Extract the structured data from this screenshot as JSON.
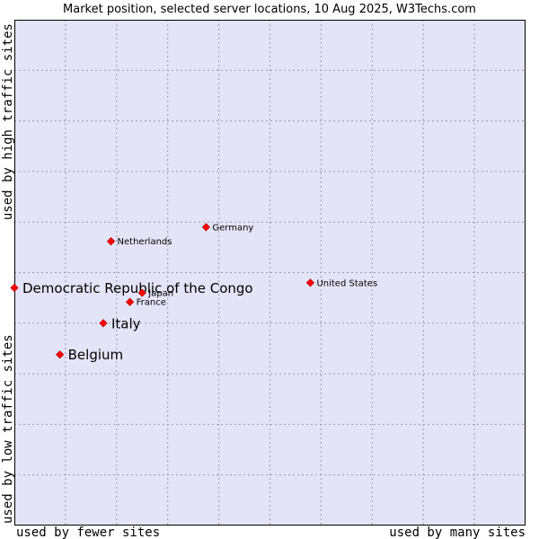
{
  "chart_data": {
    "type": "scatter",
    "title": "Market position, selected server locations, 10 Aug 2025, W3Techs.com",
    "xlabel_left": "used by fewer sites",
    "xlabel_right": "used by many sites",
    "ylabel_bottom": "used by low traffic sites",
    "ylabel_top": "used by high traffic sites",
    "xlim": [
      0,
      1
    ],
    "ylim": [
      0,
      1
    ],
    "grid": true,
    "colors": {
      "plot_bg": "#e4e4f8",
      "grid": "#9a9aaa",
      "marker": "#ff0000",
      "marker_edge": "#aa0000"
    },
    "points": [
      {
        "label": "Democratic Republic of the Congo",
        "x": 0.0,
        "y": 0.47,
        "highlight": true
      },
      {
        "label": "Italy",
        "x": 0.174,
        "y": 0.4,
        "highlight": true
      },
      {
        "label": "Belgium",
        "x": 0.089,
        "y": 0.338,
        "highlight": true
      },
      {
        "label": "Germany",
        "x": 0.375,
        "y": 0.59,
        "highlight": false
      },
      {
        "label": "Netherlands",
        "x": 0.189,
        "y": 0.562,
        "highlight": false
      },
      {
        "label": "United States",
        "x": 0.579,
        "y": 0.48,
        "highlight": false
      },
      {
        "label": "Japan",
        "x": 0.25,
        "y": 0.46,
        "highlight": false
      },
      {
        "label": "France",
        "x": 0.226,
        "y": 0.442,
        "highlight": false
      }
    ]
  }
}
